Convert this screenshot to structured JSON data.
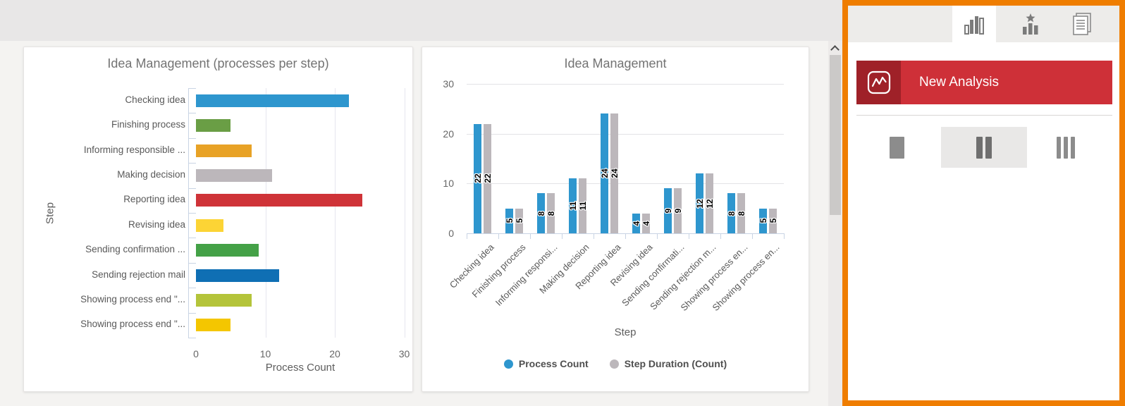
{
  "app": {
    "background": "#e8e7e7",
    "content_background": "#f4f3f1",
    "highlight_border_color": "#ef7d00"
  },
  "chart_data": [
    {
      "type": "bar",
      "orientation": "horizontal",
      "title": "Idea Management (processes per step)",
      "xlabel": "Process Count",
      "ylabel": "Step",
      "categories": [
        "Checking idea",
        "Finishing process",
        "Informing responsible ...",
        "Making decision",
        "Reporting idea",
        "Revising idea",
        "Sending confirmation ...",
        "Sending rejection mail",
        "Showing process end \"...",
        "Showing process end \"..."
      ],
      "values": [
        22,
        5,
        8,
        11,
        24,
        4,
        9,
        12,
        8,
        5
      ],
      "bar_colors": [
        "#2e96ce",
        "#6a9e45",
        "#e8a226",
        "#bcb7bb",
        "#cf3338",
        "#fcd435",
        "#44a147",
        "#0f6fb4",
        "#b4c43a",
        "#f4c600"
      ],
      "xlim": [
        0,
        30
      ],
      "x_ticks": [
        0,
        10,
        20,
        30
      ],
      "grid": true
    },
    {
      "type": "bar",
      "orientation": "vertical",
      "title": "Idea Management",
      "xlabel": "Step",
      "categories": [
        "Checking idea",
        "Finishing process",
        "Informing responsi...",
        "Making decision",
        "Reporting idea",
        "Revising idea",
        "Sending confirmati...",
        "Sending rejection m...",
        "Showing process en...",
        "Showing process en..."
      ],
      "series": [
        {
          "name": "Process Count",
          "color": "#2e96ce",
          "values": [
            22,
            5,
            8,
            11,
            24,
            4,
            9,
            12,
            8,
            5
          ]
        },
        {
          "name": "Step Duration (Count)",
          "color": "#bcb7bb",
          "values": [
            22,
            5,
            8,
            11,
            24,
            4,
            9,
            12,
            8,
            5
          ]
        }
      ],
      "ylim": [
        0,
        30
      ],
      "y_ticks": [
        0,
        10,
        20,
        30
      ],
      "value_labels": true,
      "legend_position": "bottom",
      "grid": true
    }
  ],
  "side_panel": {
    "tabs": [
      {
        "icon": "column-chart-icon",
        "active": true
      },
      {
        "icon": "ranking-chart-icon",
        "active": false
      },
      {
        "icon": "report-documents-icon",
        "active": false
      }
    ],
    "new_analysis": {
      "label": "New Analysis",
      "color": "#ce3038",
      "icon_box_color": "#9f2128"
    },
    "layout_options": [
      {
        "name": "one-column",
        "selected": false
      },
      {
        "name": "two-columns",
        "selected": true
      },
      {
        "name": "three-columns",
        "selected": false
      }
    ]
  }
}
